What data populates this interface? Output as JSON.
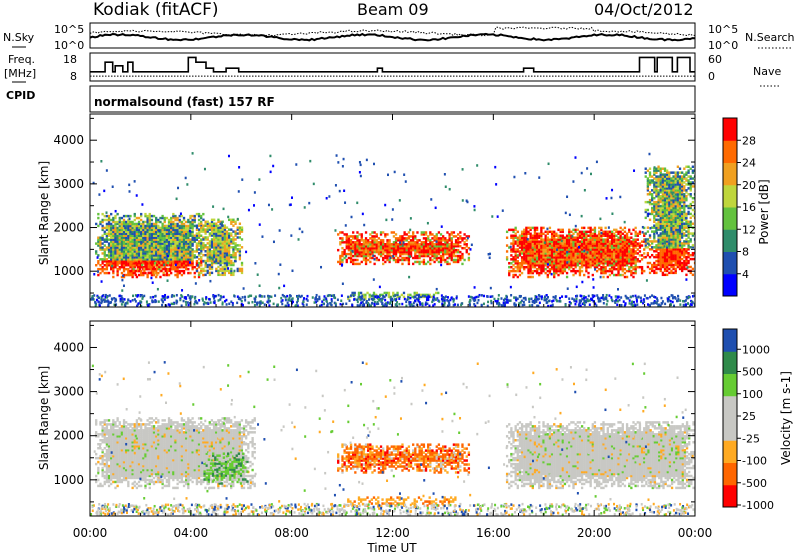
{
  "header": {
    "station": "Kodiak (fitACF)",
    "beam": "Beam 09",
    "date": "04/Oct/2012"
  },
  "top_panel": {
    "nsky_label": "N.Sky",
    "nsearch_label": "N.Search",
    "nsky_ticks": [
      "10^5",
      "10^0"
    ],
    "nsearch_ticks": [
      "10^5",
      "10^0"
    ],
    "freq_label_1": "Freq.",
    "freq_label_2": "[MHz]",
    "freq_ticks": [
      "18",
      "8"
    ],
    "nave_label": "Nave",
    "nave_ticks": [
      "60",
      "0"
    ],
    "cpid_label": "CPID",
    "cpid_text": "normalsound (fast) 157 RF"
  },
  "x_axis": {
    "label": "Time UT",
    "ticks": [
      "00:00",
      "04:00",
      "08:00",
      "12:00",
      "16:00",
      "20:00",
      "00:00"
    ]
  },
  "colors": {
    "power": [
      "#0000ff",
      "#1f4fb0",
      "#2f8c6a",
      "#63c23e",
      "#bfd63c",
      "#f0a020",
      "#ff6a00",
      "#ff0000"
    ],
    "velocity": [
      "#ff0000",
      "#ff6600",
      "#ffaa22",
      "#c8c8c4",
      "#c8c8c4",
      "#66cc33",
      "#2f8a4a",
      "#1f4fb0"
    ]
  },
  "chart_data": [
    {
      "type": "heatmap",
      "title": "",
      "ylabel": "Slant Range [km]",
      "ylim": [
        180,
        4600
      ],
      "yticks": [
        "1000",
        "2000",
        "3000",
        "4000"
      ],
      "colorbar": {
        "label": "Power [dB]",
        "ticks": [
          "4",
          "8",
          "12",
          "16",
          "20",
          "24",
          "28"
        ]
      },
      "regions": [
        {
          "t": [
            0.2,
            4.5
          ],
          "r": [
            850,
            2300
          ],
          "level": "mixed"
        },
        {
          "t": [
            1.6,
            3.2
          ],
          "r": [
            900,
            1200
          ],
          "level": "high"
        },
        {
          "t": [
            4.2,
            6.0
          ],
          "r": [
            900,
            2200
          ],
          "level": "medium"
        },
        {
          "t": [
            9.8,
            15.0
          ],
          "r": [
            1150,
            1900
          ],
          "level": "high"
        },
        {
          "t": [
            10.2,
            14.0
          ],
          "r": [
            350,
            500
          ],
          "level": "low"
        },
        {
          "t": [
            16.5,
            22.0
          ],
          "r": [
            850,
            2000
          ],
          "level": "high"
        },
        {
          "t": [
            22.0,
            24.0
          ],
          "r": [
            900,
            3400
          ],
          "level": "mixed"
        }
      ]
    },
    {
      "type": "heatmap",
      "title": "",
      "ylabel": "Slant Range [km]",
      "ylim": [
        180,
        4600
      ],
      "yticks": [
        "1000",
        "2000",
        "3000",
        "4000"
      ],
      "colorbar": {
        "label": "Velocity [m s-1]",
        "ticks": [
          "1000",
          "500",
          "100",
          "25",
          "-25",
          "-100",
          "-500",
          "-1000"
        ]
      },
      "regions": [
        {
          "t": [
            0.2,
            6.5
          ],
          "r": [
            800,
            2400
          ],
          "level": "ground"
        },
        {
          "t": [
            4.5,
            6.2
          ],
          "r": [
            900,
            1600
          ],
          "level": "positive"
        },
        {
          "t": [
            9.8,
            15.0
          ],
          "r": [
            1150,
            1800
          ],
          "level": "negative"
        },
        {
          "t": [
            10.2,
            14.5
          ],
          "r": [
            400,
            600
          ],
          "level": "slight-negative"
        },
        {
          "t": [
            16.5,
            24.0
          ],
          "r": [
            800,
            2300
          ],
          "level": "ground"
        }
      ]
    }
  ]
}
